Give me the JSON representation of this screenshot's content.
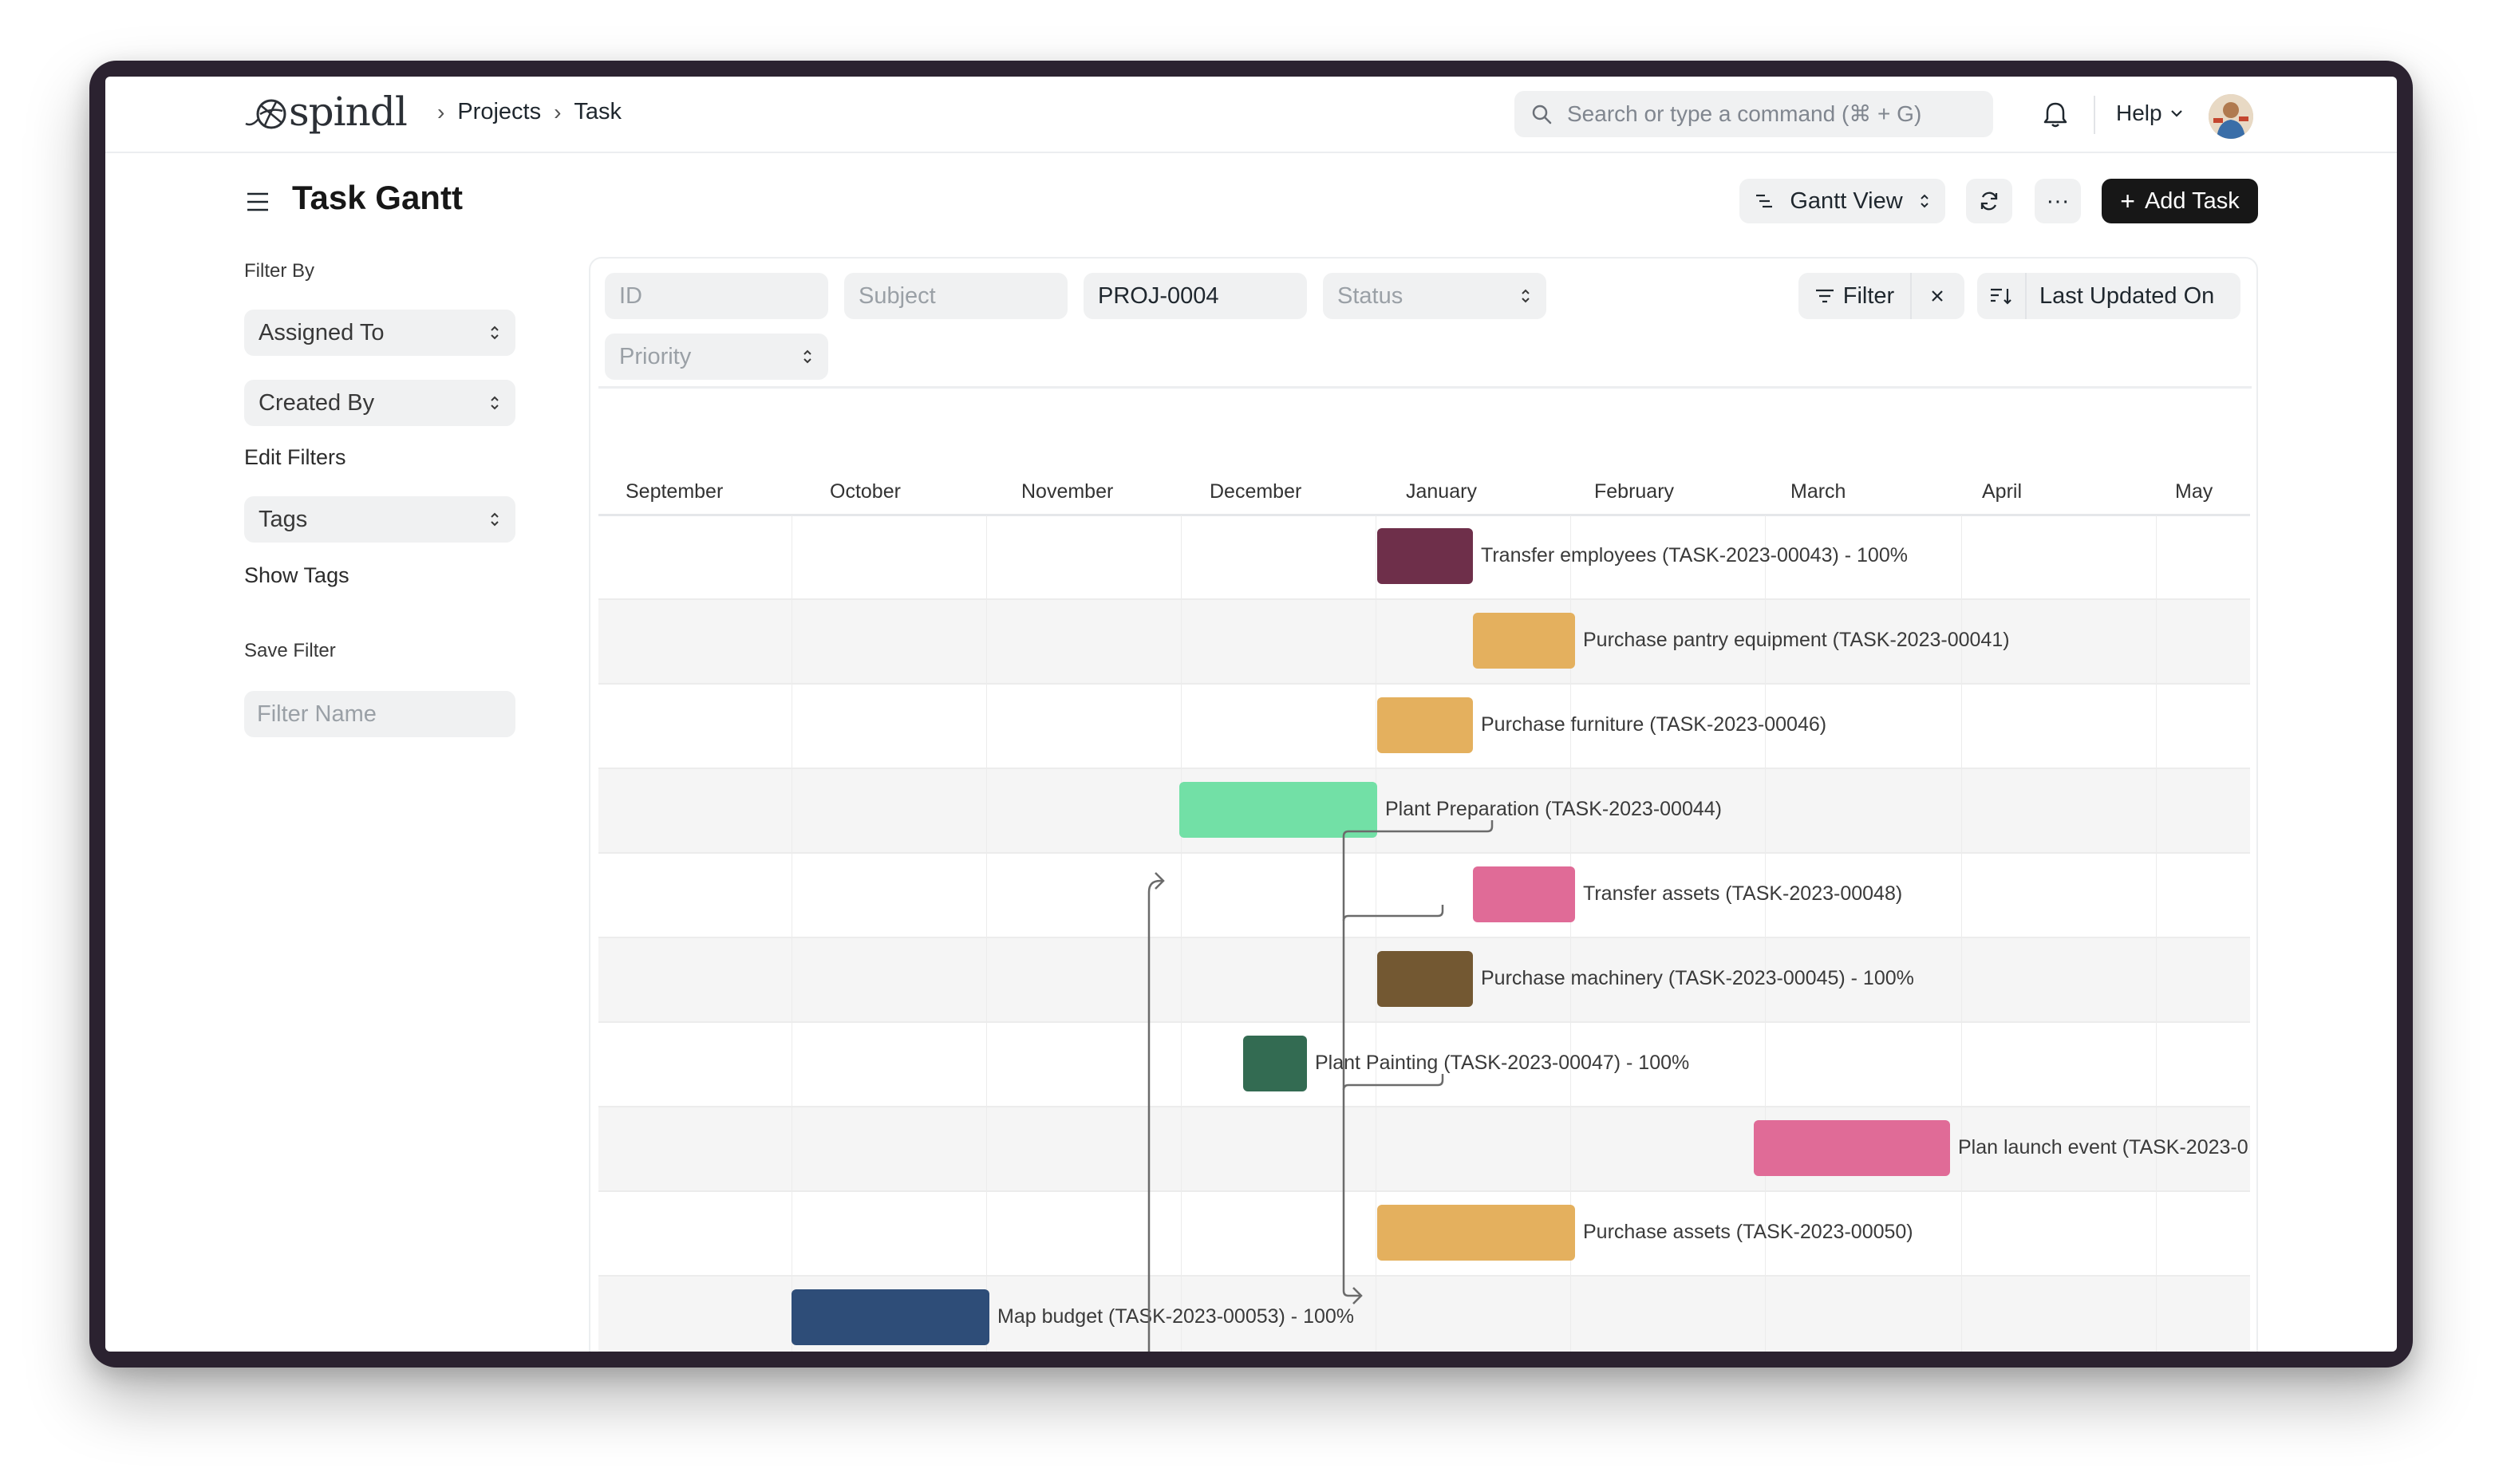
{
  "navbar": {
    "logo_text": "spindl",
    "breadcrumbs": [
      "Projects",
      "Task"
    ],
    "search_placeholder": "Search or type a command (⌘ + G)",
    "help_label": "Help"
  },
  "page": {
    "title": "Task Gantt",
    "view_label": "Gantt View",
    "more_label": "···",
    "add_label": "Add Task"
  },
  "sidebar": {
    "filter_by": "Filter By",
    "assigned_to": "Assigned To",
    "created_by": "Created By",
    "edit_filters": "Edit Filters",
    "tags": "Tags",
    "show_tags": "Show Tags",
    "save_filter": "Save Filter",
    "filter_name_placeholder": "Filter Name"
  },
  "filters": {
    "id_placeholder": "ID",
    "subject_placeholder": "Subject",
    "project_value": "PROJ-0004",
    "status_placeholder": "Status",
    "priority_placeholder": "Priority",
    "filter_label": "Filter",
    "sort_label": "Last Updated On"
  },
  "gantt": {
    "months": [
      "September",
      "October",
      "November",
      "December",
      "January",
      "February",
      "March",
      "April",
      "May"
    ],
    "tasks": [
      {
        "label": "Transfer employees (TASK-2023-00043) - 100%",
        "color": "#6e2f4a"
      },
      {
        "label": "Purchase pantry equipment (TASK-2023-00041)",
        "color": "#e4b05e"
      },
      {
        "label": "Purchase furniture (TASK-2023-00046)",
        "color": "#e4b05e"
      },
      {
        "label": "Plant Preparation (TASK-2023-00044)",
        "color": "#72e0a6"
      },
      {
        "label": "Transfer assets (TASK-2023-00048)",
        "color": "#e06b97"
      },
      {
        "label": "Purchase machinery (TASK-2023-00045) - 100%",
        "color": "#735832"
      },
      {
        "label": "Plant Painting (TASK-2023-00047) - 100%",
        "color": "#336b52"
      },
      {
        "label": "Plan launch event (TASK-2023-0",
        "color": "#e06b97"
      },
      {
        "label": "Purchase assets (TASK-2023-00050)",
        "color": "#e4b05e"
      },
      {
        "label": "Map budget (TASK-2023-00053) - 100%",
        "color": "#2e4d78"
      },
      {
        "label": "",
        "color": "#2e4d78"
      }
    ]
  }
}
